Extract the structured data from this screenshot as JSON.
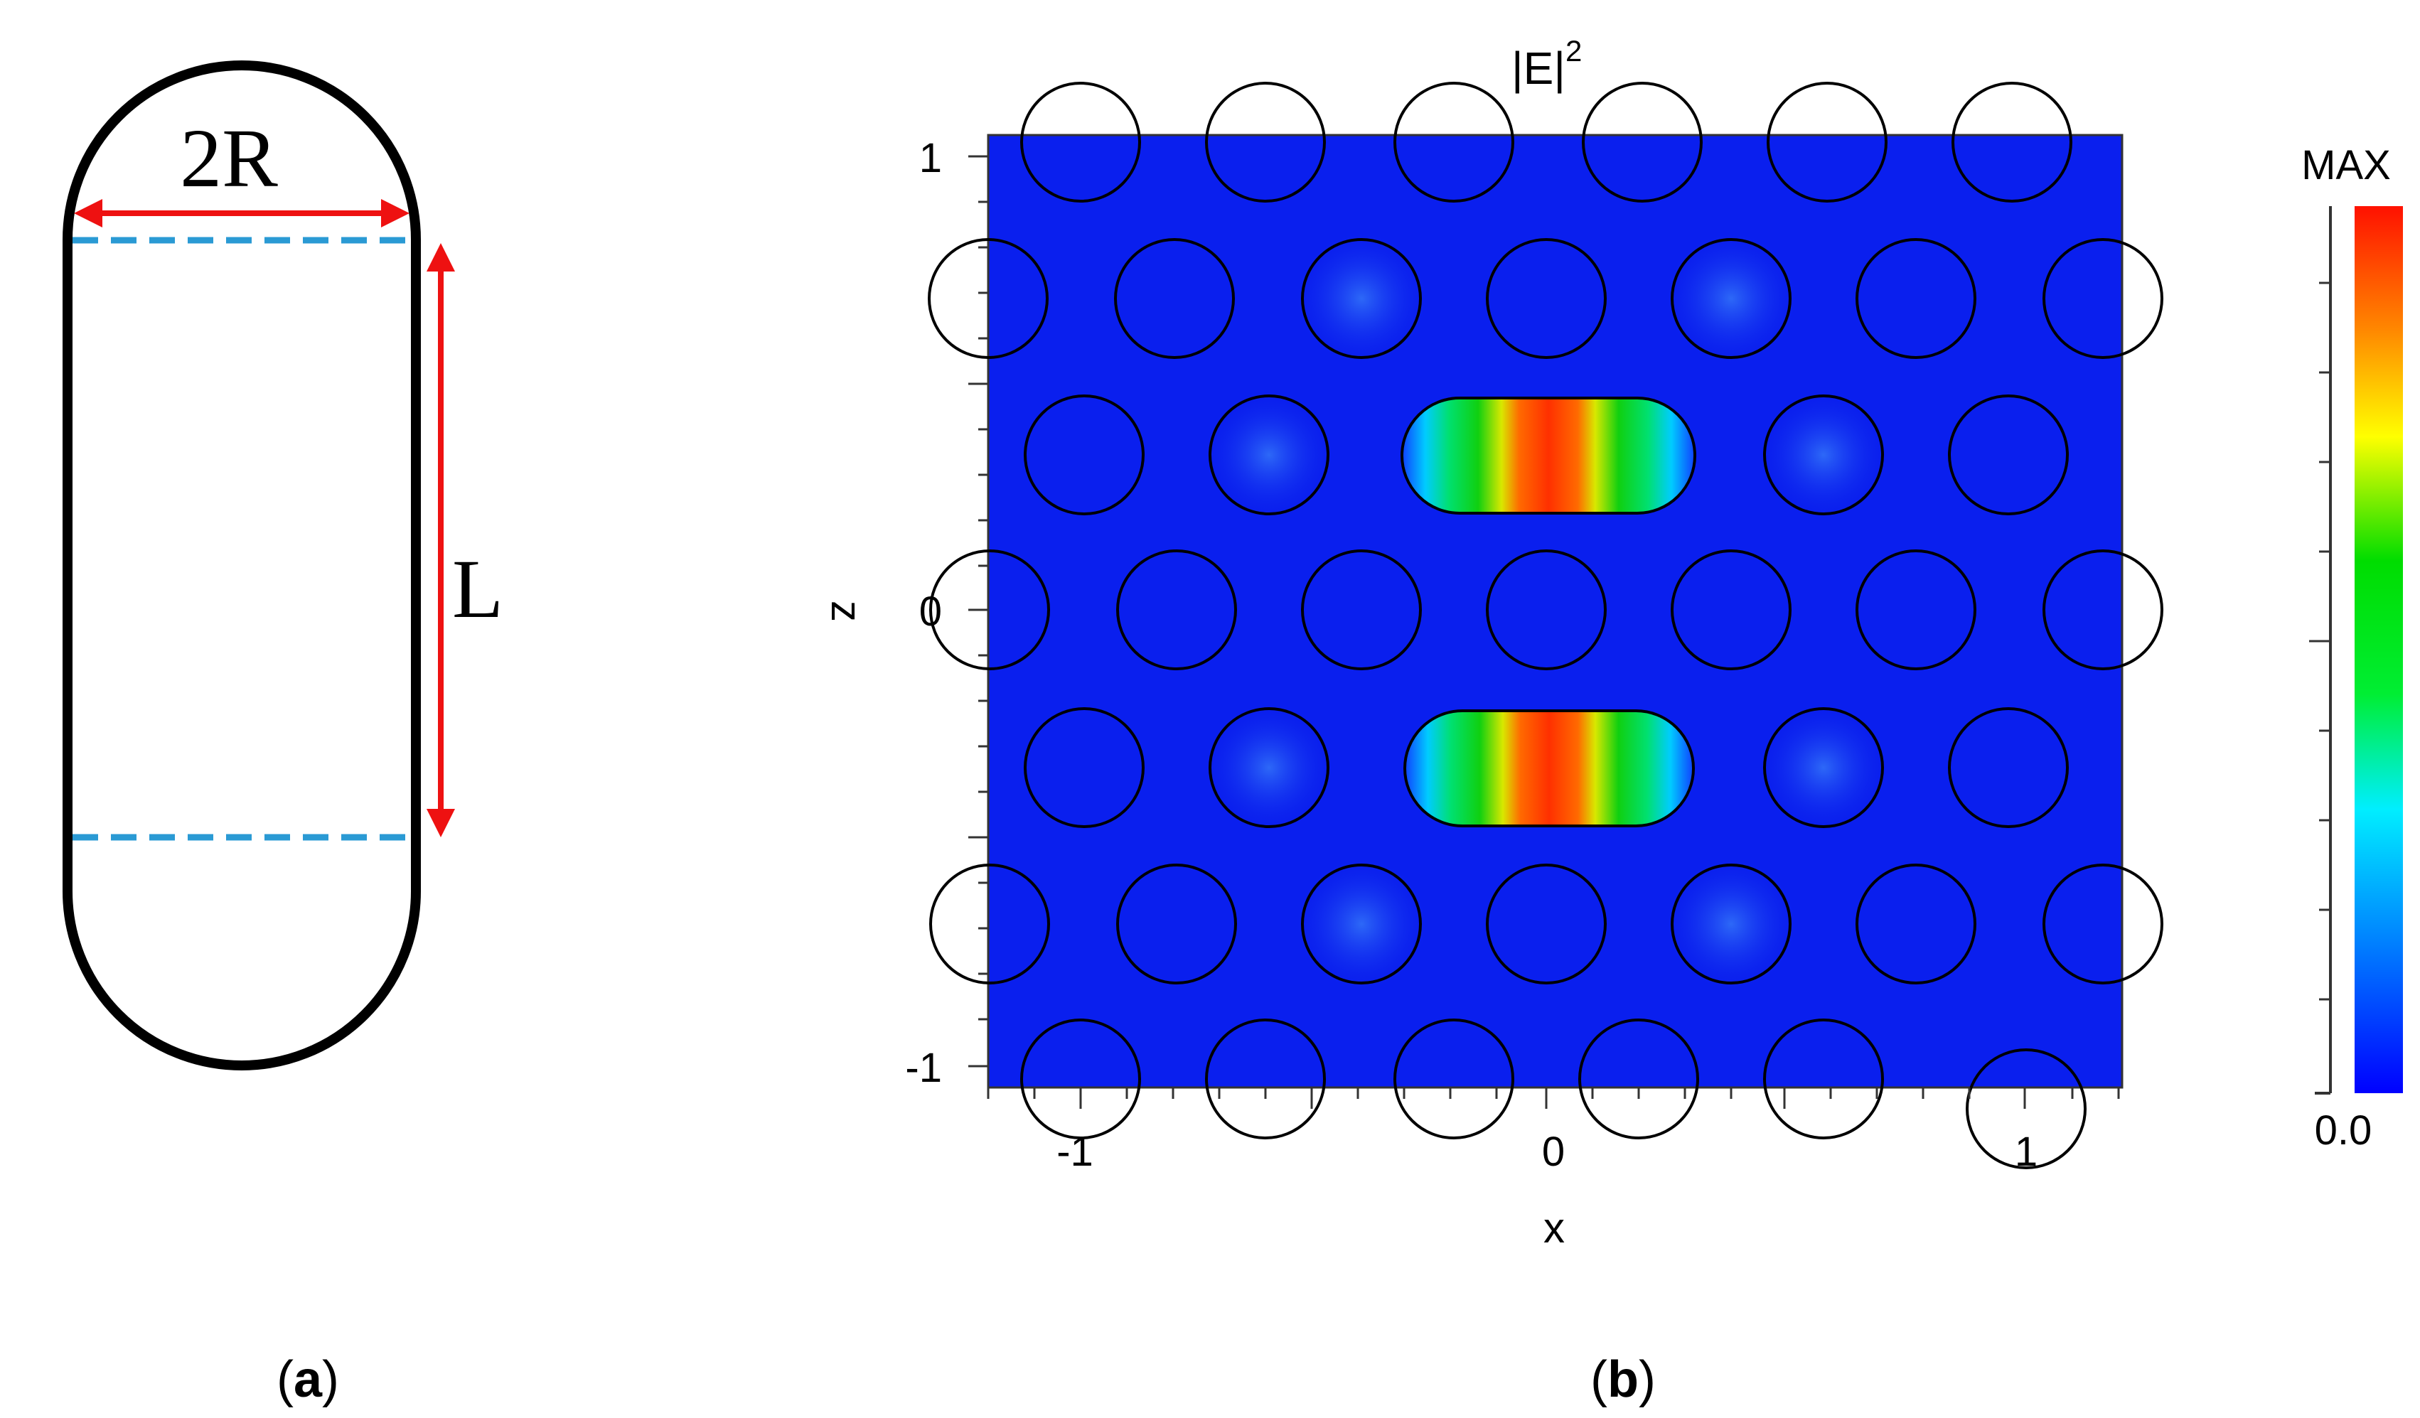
{
  "panel_a": {
    "width_label": "2R",
    "length_label": "L",
    "caption": {
      "open": "(",
      "letter": "a",
      "close": ")"
    },
    "colors": {
      "outline": "#000000",
      "arrow": "#ee1111",
      "dashed": "#2a9ad4"
    }
  },
  "panel_b": {
    "title_base": "|E|",
    "title_exp": "2",
    "x_axis_label": "x",
    "z_axis_label": "z",
    "x_ticks": [
      "-1",
      "0",
      "1"
    ],
    "z_ticks": [
      "1",
      "0",
      "-1"
    ],
    "caption": {
      "open": "(",
      "letter": "b",
      "close": ")"
    },
    "colorbar": {
      "max_label": "MAX",
      "min_label": "0.0",
      "stops": [
        "#0000ff",
        "#0088ff",
        "#00eeff",
        "#00ee33",
        "#00dd00",
        "#ffff00",
        "#ff8800",
        "#ff1100"
      ]
    },
    "colors": {
      "background_field": "#0a1fee",
      "hot": "#ff3b00"
    }
  }
}
